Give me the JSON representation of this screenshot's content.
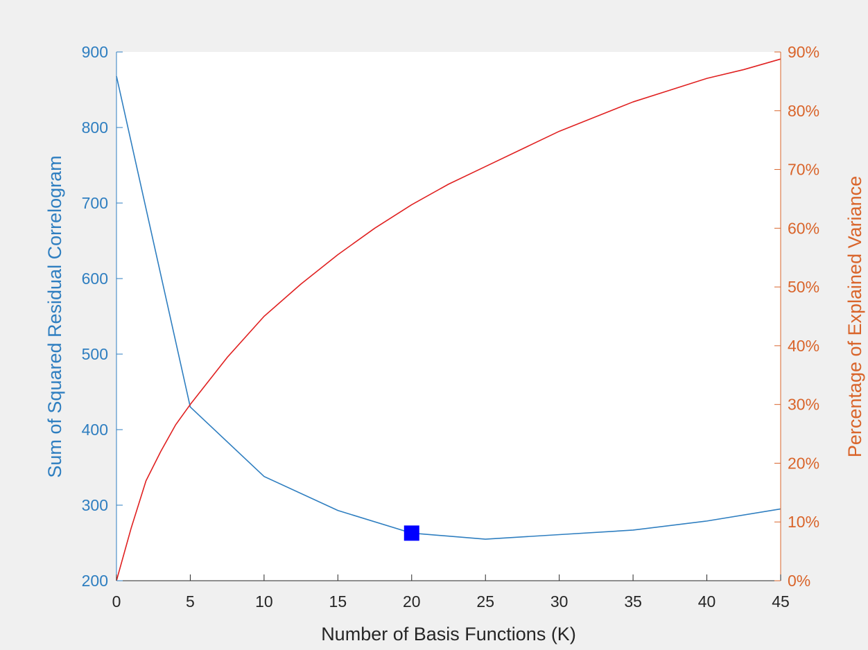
{
  "chart_data": {
    "type": "line",
    "xlabel": "Number of Basis Functions (K)",
    "xlim": [
      0,
      45
    ],
    "x_ticks": [
      0,
      5,
      10,
      15,
      20,
      25,
      30,
      35,
      40,
      45
    ],
    "left_axis": {
      "label": "Sum of Squared Residual Correlogram",
      "ylim": [
        200,
        900
      ],
      "ticks": [
        200,
        300,
        400,
        500,
        600,
        700,
        800,
        900
      ],
      "color": "#2e7ec0"
    },
    "right_axis": {
      "label": "Percentage of Explained Variance",
      "ylim": [
        0,
        90
      ],
      "ticks": [
        0,
        10,
        20,
        30,
        40,
        50,
        60,
        70,
        80,
        90
      ],
      "tick_suffix": "%",
      "color": "#d9642a"
    },
    "series": [
      {
        "axis": "left",
        "color": "#2e7ec0",
        "x": [
          0,
          5,
          10,
          15,
          20,
          25,
          30,
          35,
          40,
          45
        ],
        "values": [
          868,
          430,
          338,
          293,
          263,
          255,
          261,
          267,
          279,
          295
        ]
      },
      {
        "axis": "right",
        "color": "#e02020",
        "x": [
          0,
          1,
          2,
          3,
          4,
          5,
          7.5,
          10,
          12.5,
          15,
          17.5,
          20,
          22.5,
          25,
          27.5,
          30,
          32.5,
          35,
          37.5,
          40,
          42.5,
          45
        ],
        "values": [
          0,
          9,
          17,
          22,
          26.5,
          30,
          38,
          45,
          50.5,
          55.5,
          60,
          64,
          67.5,
          70.5,
          73.5,
          76.5,
          79,
          81.5,
          83.5,
          85.5,
          87,
          88.8
        ]
      }
    ],
    "marker": {
      "x": 20,
      "y": 263,
      "axis": "left",
      "shape": "square",
      "color": "#0000ff"
    },
    "grid": false,
    "legend": false
  }
}
